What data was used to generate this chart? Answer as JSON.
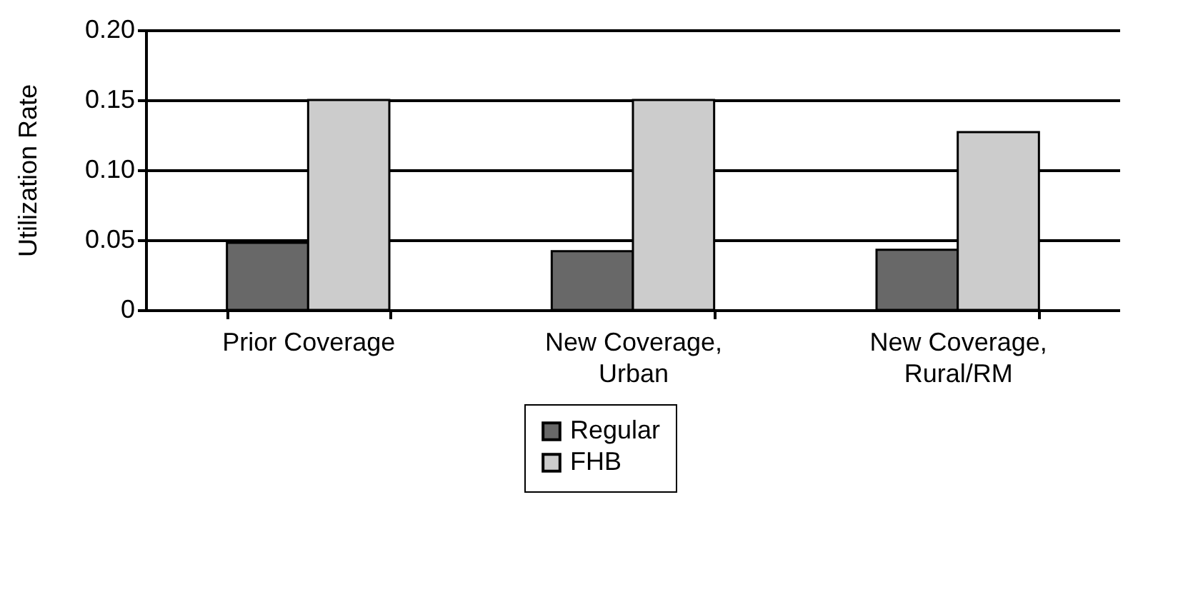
{
  "chart_data": {
    "type": "bar",
    "ylabel": "Utilization Rate",
    "categories": [
      "Prior Coverage",
      "New Coverage,\nUrban",
      "New Coverage,\nRural/RM"
    ],
    "series": [
      {
        "name": "Regular",
        "color": "#686868",
        "values": [
          0.048,
          0.042,
          0.043
        ]
      },
      {
        "name": "FHB",
        "color": "#cccccc",
        "values": [
          0.15,
          0.15,
          0.127
        ]
      }
    ],
    "ylim": [
      0,
      0.2
    ],
    "yticks": [
      0,
      0.05,
      {
        "value": 0.1,
        "label": "0.10"
      },
      0.15,
      {
        "value": 0.2,
        "label": "0.20"
      }
    ],
    "grid": "y",
    "legend": "bottom"
  }
}
